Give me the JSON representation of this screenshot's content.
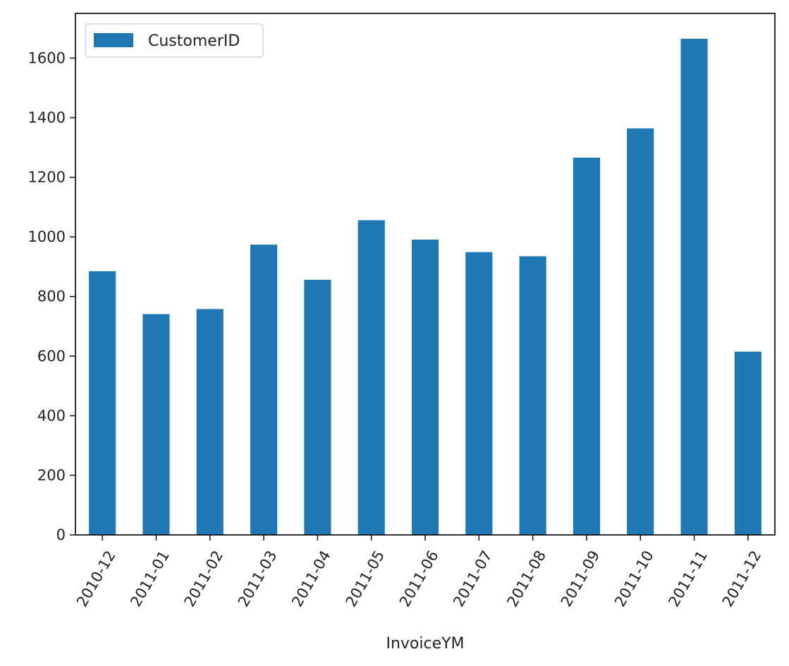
{
  "chart_data": {
    "type": "bar",
    "categories": [
      "2010-12",
      "2011-01",
      "2011-02",
      "2011-03",
      "2011-04",
      "2011-05",
      "2011-06",
      "2011-07",
      "2011-08",
      "2011-09",
      "2011-10",
      "2011-11",
      "2011-12"
    ],
    "series": [
      {
        "name": "CustomerID",
        "values": [
          885,
          741,
          758,
          974,
          856,
          1056,
          991,
          949,
          935,
          1266,
          1364,
          1665,
          615
        ],
        "color": "#1f77b4"
      }
    ],
    "xlabel": "InvoiceYM",
    "ylabel": "",
    "ylim": [
      0,
      1750
    ],
    "yticks": [
      0,
      200,
      400,
      600,
      800,
      1000,
      1200,
      1400,
      1600
    ],
    "grid": false,
    "legend_position": "top-left",
    "x_tick_rotation_deg": 60
  }
}
